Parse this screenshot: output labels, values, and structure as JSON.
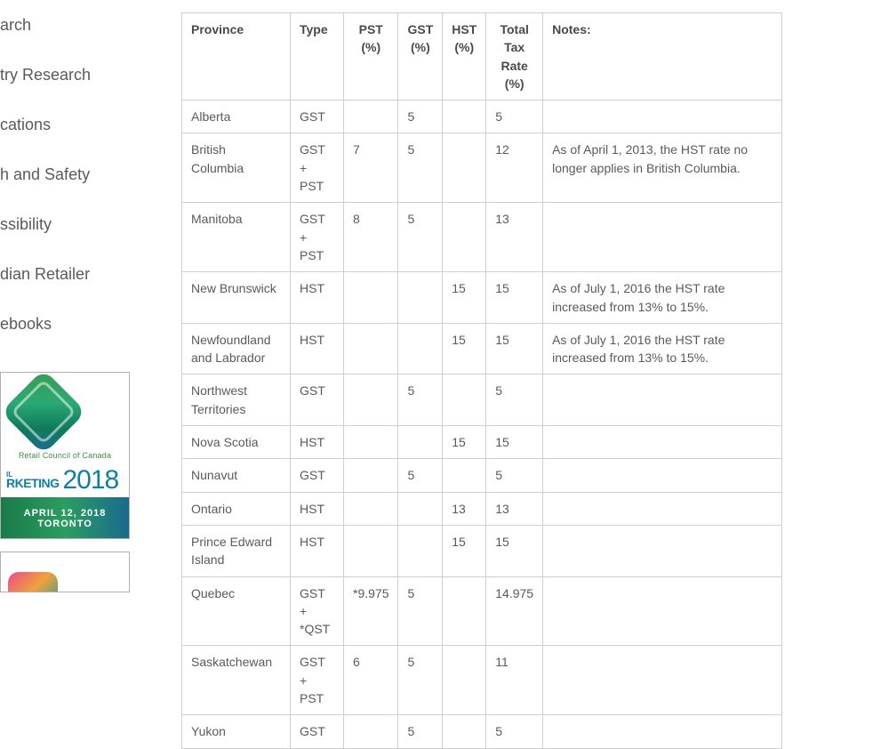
{
  "sidebar": {
    "items": [
      {
        "label": "arch"
      },
      {
        "label": "try Research"
      },
      {
        "label": "cations"
      },
      {
        "label": "h and Safety"
      },
      {
        "label": "ssibility"
      },
      {
        "label": "dian Retailer"
      },
      {
        "label": "ebooks"
      }
    ]
  },
  "ad": {
    "council": "Retail Council of Canada",
    "marketing_prefix": "IL",
    "marketing": "RKETING",
    "year": "2018",
    "date": "APRIL 12, 2018",
    "city": "TORONTO"
  },
  "table": {
    "columns": [
      "Province",
      "Type",
      "PST (%)",
      "GST (%)",
      "HST (%)",
      "Total Tax Rate (%)",
      "Notes:"
    ],
    "rows": [
      {
        "province": "Alberta",
        "type": "GST",
        "pst": "",
        "gst": "5",
        "hst": "",
        "total": "5",
        "notes": ""
      },
      {
        "province": "British Columbia",
        "type": "GST + PST",
        "pst": "7",
        "gst": "5",
        "hst": "",
        "total": "12",
        "notes": "As of April 1, 2013, the HST rate no longer applies in British Columbia."
      },
      {
        "province": "Manitoba",
        "type": "GST + PST",
        "pst": "8",
        "gst": "5",
        "hst": "",
        "total": "13",
        "notes": ""
      },
      {
        "province": "New Brunswick",
        "type": "HST",
        "pst": "",
        "gst": "",
        "hst": "15",
        "total": "15",
        "notes": "As of July 1, 2016 the HST rate increased from 13% to 15%."
      },
      {
        "province": "Newfoundland and Labrador",
        "type": "HST",
        "pst": "",
        "gst": "",
        "hst": "15",
        "total": "15",
        "notes": "As of July 1, 2016 the HST rate increased from 13% to 15%."
      },
      {
        "province": "Northwest Territories",
        "type": "GST",
        "pst": "",
        "gst": "5",
        "hst": "",
        "total": "5",
        "notes": ""
      },
      {
        "province": "Nova Scotia",
        "type": "HST",
        "pst": "",
        "gst": "",
        "hst": "15",
        "total": "15",
        "notes": ""
      },
      {
        "province": "Nunavut",
        "type": "GST",
        "pst": "",
        "gst": "5",
        "hst": "",
        "total": "5",
        "notes": ""
      },
      {
        "province": "Ontario",
        "type": "HST",
        "pst": "",
        "gst": "",
        "hst": "13",
        "total": "13",
        "notes": ""
      },
      {
        "province": "Prince Edward Island",
        "type": "HST",
        "pst": "",
        "gst": "",
        "hst": "15",
        "total": "15",
        "notes": ""
      },
      {
        "province": "Quebec",
        "type": "GST + *QST",
        "pst": "*9.975",
        "gst": "5",
        "hst": "",
        "total": "14.975",
        "notes": ""
      },
      {
        "province": "Saskatchewan",
        "type": "GST + PST",
        "pst": "6",
        "gst": "5",
        "hst": "",
        "total": "11",
        "notes": ""
      },
      {
        "province": "Yukon",
        "type": "GST",
        "pst": "",
        "gst": "5",
        "hst": "",
        "total": "5",
        "notes": ""
      }
    ]
  },
  "style": {
    "text_color": "#5a5a5a",
    "header_color": "#4a4a4a",
    "border_color": "#cfcfcf",
    "background": "#ffffff",
    "sidebar_fontsize": 18,
    "table_fontsize": 14
  }
}
